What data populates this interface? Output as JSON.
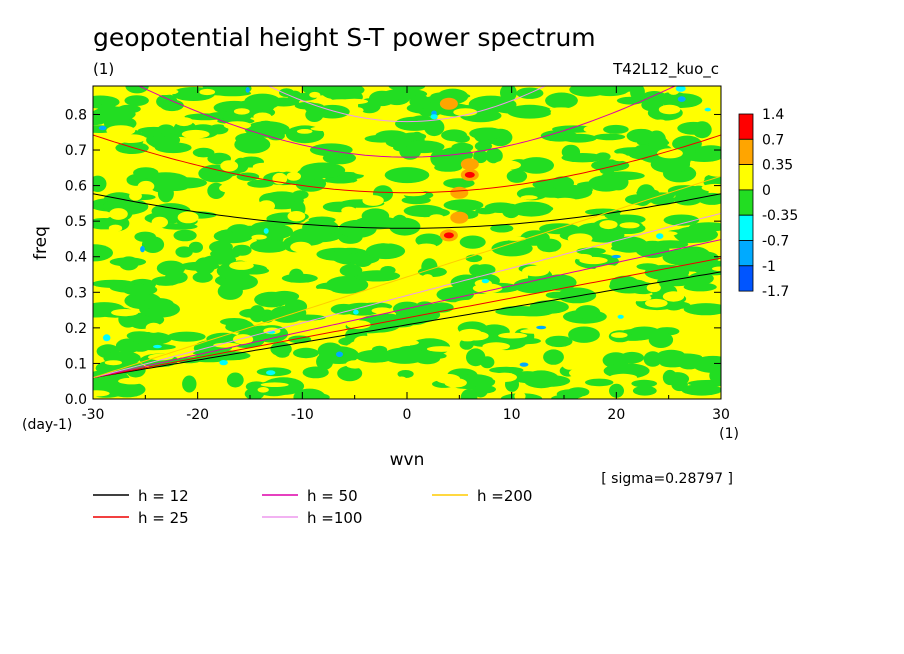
{
  "chart_data": {
    "type": "heatmap",
    "title": "geopotential height S-T power spectrum",
    "subtitle_left": "(1)",
    "subtitle_right": "T42L12_kuo_c",
    "xlabel": "wvn",
    "ylabel": "freq",
    "x_unit": "(1)",
    "y_unit": "(day-1)",
    "xlim": [
      -30,
      30
    ],
    "ylim": [
      0.0,
      0.88
    ],
    "xticks": [
      "-30",
      "-20",
      "-10",
      "0",
      "10",
      "20",
      "30"
    ],
    "yticks": [
      "0.0",
      "0.1",
      "0.2",
      "0.3",
      "0.4",
      "0.5",
      "0.6",
      "0.7",
      "0.8"
    ],
    "sigma_note": "[ sigma=0.28797 ]",
    "colorbar": {
      "levels": [
        "1.4",
        "0.7",
        "0.35",
        "0",
        "-0.35",
        "-0.7",
        "-1",
        "-1.7"
      ],
      "colors": [
        "#ff0000",
        "#ffa500",
        "#ffff00",
        "#22dd22",
        "#00ffff",
        "#00aaff",
        "#0055ff"
      ]
    },
    "dispersion_curves": [
      {
        "label": "h = 12",
        "h": 12,
        "color": "#000000"
      },
      {
        "label": "h = 25",
        "h": 25,
        "color": "#ee0000"
      },
      {
        "label": "h = 50",
        "h": 50,
        "color": "#dd00aa"
      },
      {
        "label": "h =100",
        "h": 100,
        "color": "#ee99ee"
      },
      {
        "label": "h =200",
        "h": 200,
        "color": "#ffcc00"
      }
    ],
    "features": [
      {
        "wvn": 4,
        "freq": 0.46,
        "value": "1.4"
      },
      {
        "wvn": 6,
        "freq": 0.63,
        "value": "1.4"
      },
      {
        "wvn": 5,
        "freq": 0.51,
        "value": "0.7"
      },
      {
        "wvn": 5,
        "freq": 0.58,
        "value": "0.7"
      },
      {
        "wvn": 4,
        "freq": 0.83,
        "value": "0.7"
      },
      {
        "wvn": 6,
        "freq": 0.66,
        "value": "0.7"
      }
    ]
  }
}
